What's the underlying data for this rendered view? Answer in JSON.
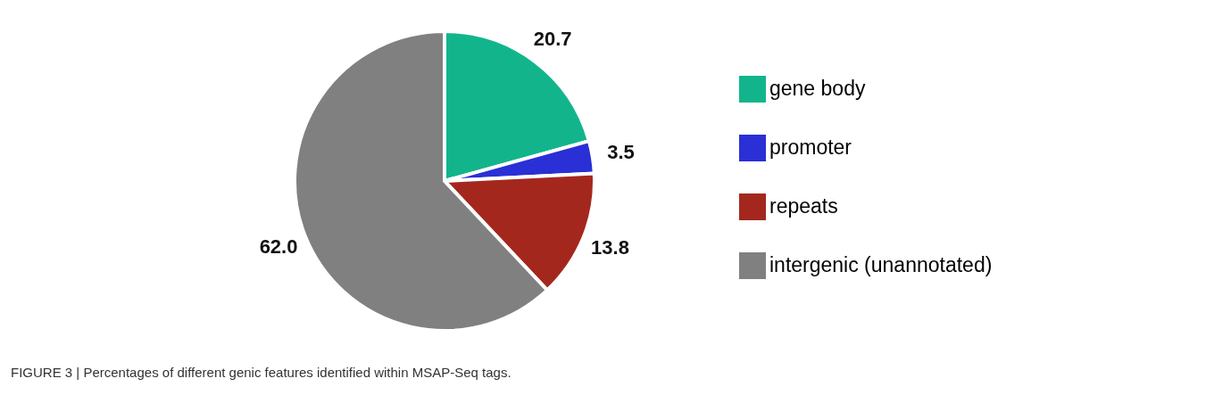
{
  "chart_data": {
    "type": "pie",
    "categories": [
      "gene body",
      "promoter",
      "repeats",
      "intergenic (unannotated)"
    ],
    "values": [
      20.7,
      3.5,
      13.8,
      62.0
    ],
    "colors": [
      "#12b58b",
      "#2a2fd6",
      "#a4271d",
      "#808080"
    ],
    "value_labels": [
      "20.7",
      "3.5",
      "13.8",
      "62.0"
    ],
    "legend": "right",
    "annotations": [
      "FIGURE 3 | Percentages of different genic features identified within MSAP-Seq tags."
    ]
  }
}
